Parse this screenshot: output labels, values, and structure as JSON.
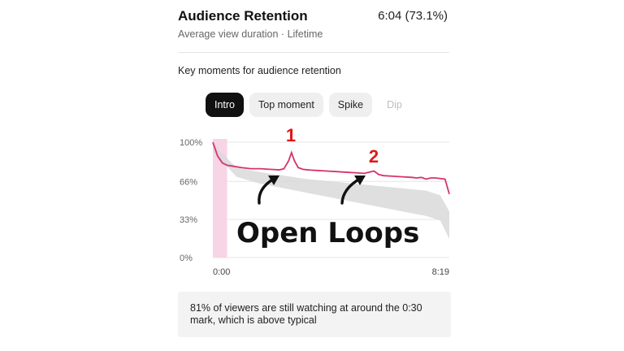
{
  "header": {
    "title": "Audience Retention",
    "metric": "6:04 (73.1%)",
    "subtitle": "Average view duration · Lifetime"
  },
  "key_moments": {
    "title": "Key moments for audience retention",
    "chips": [
      {
        "label": "Intro",
        "state": "selected"
      },
      {
        "label": "Top moment",
        "state": "default"
      },
      {
        "label": "Spike",
        "state": "default"
      },
      {
        "label": "Dip",
        "state": "disabled"
      }
    ]
  },
  "annotations": {
    "marker_1": "1",
    "marker_2": "2",
    "overlay_text": "Open Loops"
  },
  "colors": {
    "line": "#d6336c",
    "typical_band": "#d9d9d9",
    "intro_highlight": "#f7d4e6",
    "marker": "#e01818"
  },
  "chart_data": {
    "type": "line",
    "x_tick_labels": [
      "0:00",
      "8:19"
    ],
    "y_tick_labels": [
      "100%",
      "66%",
      "33%",
      "0%"
    ],
    "ylim": [
      0,
      100
    ],
    "xlim": [
      0,
      499
    ],
    "intro_range": [
      0,
      30
    ],
    "series": [
      {
        "x": [
          0,
          10,
          20,
          30,
          45,
          60,
          80,
          100,
          120,
          140,
          150,
          160,
          166,
          172,
          180,
          190,
          200,
          220,
          240,
          260,
          280,
          300,
          320,
          330,
          340,
          350,
          360,
          380,
          400,
          420,
          430,
          440,
          450,
          460,
          470,
          480,
          490,
          499
        ],
        "y": [
          100,
          88,
          82,
          80,
          79,
          78,
          77,
          77,
          76.5,
          76,
          77,
          84,
          91,
          84,
          78,
          76.5,
          76,
          75.5,
          75,
          74.5,
          74,
          73.5,
          73,
          74,
          75,
          72,
          71,
          70.5,
          70,
          69.5,
          69,
          69.5,
          68,
          69,
          69,
          68.5,
          68,
          55
        ]
      }
    ],
    "typical_band": {
      "x": [
        0,
        50,
        100,
        150,
        200,
        250,
        300,
        350,
        400,
        450,
        480,
        499
      ],
      "upper": [
        98,
        78,
        74,
        71,
        68,
        66,
        64,
        62,
        60,
        58,
        54,
        40
      ],
      "lower": [
        92,
        70,
        64,
        60,
        56,
        52,
        48,
        44,
        40,
        36,
        32,
        16
      ]
    }
  },
  "info_box": {
    "text": "81% of viewers are still watching at around the 0:30 mark, which is above typical"
  }
}
